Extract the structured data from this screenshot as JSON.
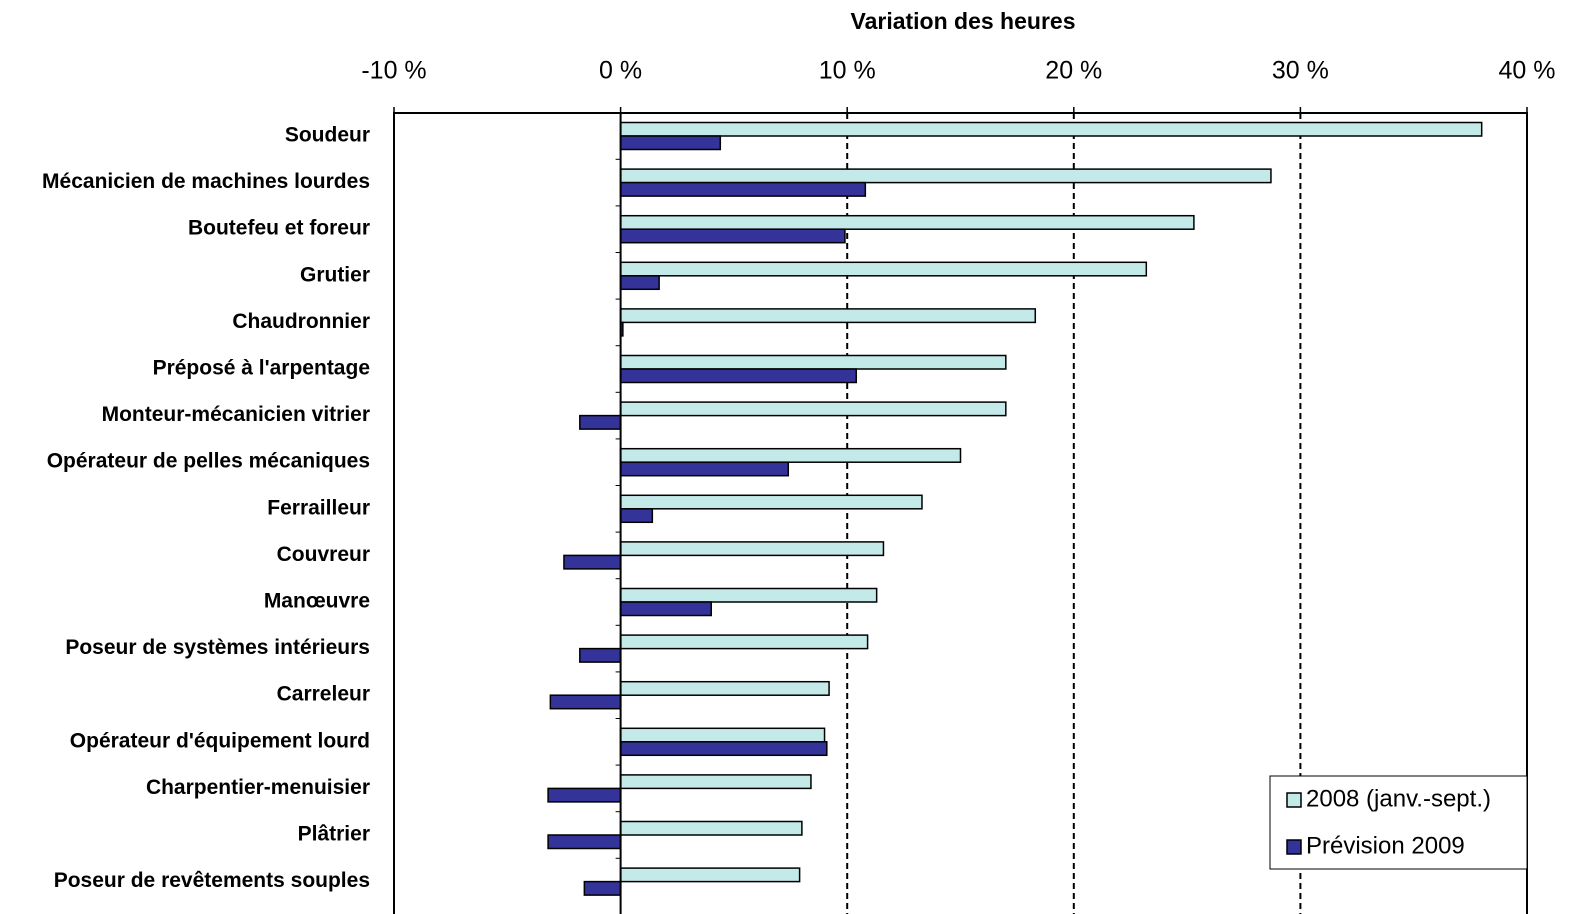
{
  "chart_data": {
    "type": "hbar",
    "title": "Variation des heures",
    "categories": [
      "Soudeur",
      "Mécanicien de machines lourdes",
      "Boutefeu et foreur",
      "Grutier",
      "Chaudronnier",
      "Préposé à l'arpentage",
      "Monteur-mécanicien vitrier",
      "Opérateur de pelles mécaniques",
      "Ferrailleur",
      "Couvreur",
      "Manœuvre",
      "Poseur de systèmes intérieurs",
      "Carreleur",
      "Opérateur d'équipement lourd",
      "Charpentier-menuisier",
      "Plâtrier",
      "Poseur de revêtements souples"
    ],
    "series": [
      {
        "name": "2008 (janv.-sept.)",
        "color": "#c4e9e9",
        "values": [
          38.0,
          28.7,
          25.3,
          23.2,
          18.3,
          17.0,
          17.0,
          15.0,
          13.3,
          11.6,
          11.3,
          10.9,
          9.2,
          9.0,
          8.4,
          8.0,
          7.9
        ]
      },
      {
        "name": "Prévision 2009",
        "color": "#333399",
        "values": [
          4.4,
          10.8,
          9.9,
          1.7,
          0.1,
          10.4,
          -1.8,
          7.4,
          1.4,
          -2.5,
          4.0,
          -1.8,
          -3.1,
          9.1,
          -3.2,
          -3.2,
          -1.6
        ]
      }
    ],
    "xlim": [
      -10,
      40
    ],
    "xticks": [
      {
        "value": -10,
        "label": "-10 %"
      },
      {
        "value": 0,
        "label": "0 %"
      },
      {
        "value": 10,
        "label": "10 %"
      },
      {
        "value": 20,
        "label": "20 %"
      },
      {
        "value": 30,
        "label": "30 %"
      },
      {
        "value": 40,
        "label": "40 %"
      }
    ],
    "grid": true,
    "legend": "lower right"
  }
}
